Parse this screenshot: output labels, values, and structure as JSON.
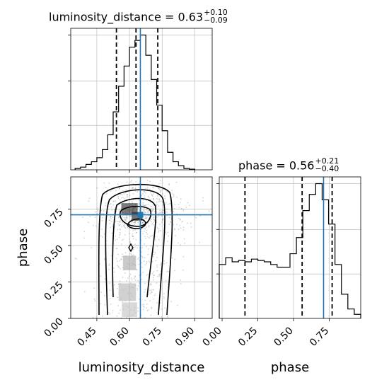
{
  "chart_data": {
    "type": "corner",
    "parameters": [
      "luminosity_distance",
      "phase"
    ],
    "panels": [
      {
        "id": "hist-luminosity-distance",
        "type": "histogram-step",
        "title": {
          "text": "luminosity_distance = 0.63",
          "upper": "+0.10",
          "lower": "−0.09"
        },
        "x_range": [
          0.33,
          0.98
        ],
        "bin_edges": [
          0.35,
          0.375,
          0.4,
          0.425,
          0.45,
          0.475,
          0.5,
          0.525,
          0.55,
          0.575,
          0.6,
          0.625,
          0.65,
          0.675,
          0.7,
          0.725,
          0.75,
          0.775,
          0.8,
          0.825,
          0.85,
          0.875,
          0.9
        ],
        "counts": [
          0.01,
          0.02,
          0.04,
          0.06,
          0.09,
          0.15,
          0.26,
          0.43,
          0.62,
          0.77,
          0.91,
          0.96,
          1.0,
          0.85,
          0.67,
          0.48,
          0.29,
          0.13,
          0.06,
          0.03,
          0.01,
          0.005
        ],
        "quantile_lines": [
          0.54,
          0.63,
          0.73
        ],
        "truth": 0.65,
        "grid": true
      },
      {
        "id": "scatter-2d",
        "type": "2d-density",
        "x_param": "luminosity_distance",
        "y_param": "phase",
        "x_range": [
          0.33,
          0.98
        ],
        "y_range": [
          0.0,
          0.97
        ],
        "x_ticks": [
          0.45,
          0.6,
          0.75,
          0.9
        ],
        "x_tick_labels": [
          "0.45",
          "0.60",
          "0.75",
          "0.90"
        ],
        "y_ticks": [
          0.0,
          0.25,
          0.5,
          0.75
        ],
        "y_tick_labels": [
          "0.00",
          "0.25",
          "0.50",
          "0.75"
        ],
        "xlabel": "luminosity_distance",
        "ylabel": "phase",
        "truth": [
          0.65,
          0.71
        ],
        "density_cells": [
          {
            "x": 0.6,
            "y": 0.75,
            "w": 0.075,
            "h": 0.08,
            "shade": 0.85
          },
          {
            "x": 0.635,
            "y": 0.7,
            "w": 0.05,
            "h": 0.06,
            "shade": 0.9
          },
          {
            "x": 0.6,
            "y": 0.38,
            "w": 0.06,
            "h": 0.1,
            "shade": 0.35
          },
          {
            "x": 0.59,
            "y": 0.18,
            "w": 0.08,
            "h": 0.12,
            "shade": 0.3
          },
          {
            "x": 0.6,
            "y": 0.06,
            "w": 0.07,
            "h": 0.1,
            "shade": 0.25
          }
        ],
        "grid": true
      },
      {
        "id": "hist-phase",
        "type": "histogram-step",
        "title": {
          "text": "phase = 0.56",
          "upper": "+0.21",
          "lower": "−0.40"
        },
        "x_range": [
          -0.02,
          0.97
        ],
        "bin_edges": [
          -0.02,
          0.025,
          0.07,
          0.115,
          0.16,
          0.205,
          0.25,
          0.295,
          0.34,
          0.385,
          0.43,
          0.475,
          0.52,
          0.565,
          0.61,
          0.655,
          0.7,
          0.745,
          0.79,
          0.835,
          0.88,
          0.925,
          0.97
        ],
        "counts": [
          0.4,
          0.45,
          0.42,
          0.43,
          0.42,
          0.44,
          0.43,
          0.42,
          0.4,
          0.38,
          0.38,
          0.48,
          0.6,
          0.8,
          0.92,
          1.0,
          0.88,
          0.7,
          0.4,
          0.18,
          0.07,
          0.03
        ],
        "quantile_lines": [
          0.16,
          0.56,
          0.77
        ],
        "truth": 0.71,
        "x_ticks": [
          0.0,
          0.25,
          0.5,
          0.75
        ],
        "x_tick_labels": [
          "0.00",
          "0.25",
          "0.50",
          "0.75"
        ],
        "xlabel": "phase",
        "grid": true
      }
    ]
  },
  "colors": {
    "truth": "#1f77b4",
    "line": "#000000",
    "grid": "#b0b0b0",
    "points": "#808080"
  }
}
